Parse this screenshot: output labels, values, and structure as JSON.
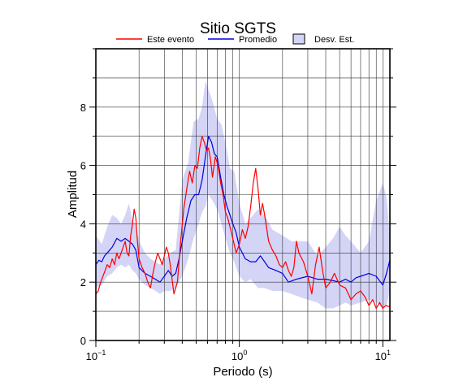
{
  "chart_data": {
    "type": "line",
    "title": "Sitio SGTS",
    "xlabel": "Periodo (s)",
    "ylabel": "Amplitud",
    "xscale": "log",
    "xlim": [
      0.1,
      11.2
    ],
    "ylim": [
      0,
      10
    ],
    "grid": true,
    "legend_position": "top",
    "x_ticks": [
      {
        "value": 0.1,
        "base": "10",
        "exp": "−1"
      },
      {
        "value": 1,
        "base": "10",
        "exp": "0"
      },
      {
        "value": 10,
        "base": "10",
        "exp": "1"
      }
    ],
    "y_ticks": [
      0,
      2,
      4,
      6,
      8
    ],
    "legend": {
      "event": "Este evento",
      "mean": "Promedio",
      "std": "Desv. Est."
    },
    "colors": {
      "event": "#ff0000",
      "mean": "#0000dd",
      "std_fill": "#d4d4f7"
    },
    "series": [
      {
        "role": "event",
        "x": [
          0.1,
          0.104,
          0.108,
          0.112,
          0.116,
          0.12,
          0.125,
          0.13,
          0.135,
          0.14,
          0.145,
          0.15,
          0.155,
          0.16,
          0.165,
          0.17,
          0.175,
          0.18,
          0.185,
          0.19,
          0.195,
          0.2,
          0.21,
          0.22,
          0.23,
          0.24,
          0.25,
          0.26,
          0.27,
          0.28,
          0.29,
          0.3,
          0.31,
          0.32,
          0.33,
          0.35,
          0.37,
          0.39,
          0.41,
          0.43,
          0.45,
          0.47,
          0.49,
          0.51,
          0.53,
          0.55,
          0.57,
          0.59,
          0.61,
          0.63,
          0.65,
          0.68,
          0.71,
          0.74,
          0.77,
          0.8,
          0.83,
          0.86,
          0.9,
          0.95,
          1.0,
          1.05,
          1.1,
          1.15,
          1.2,
          1.25,
          1.3,
          1.35,
          1.4,
          1.45,
          1.5,
          1.6,
          1.7,
          1.8,
          1.9,
          2.0,
          2.1,
          2.2,
          2.3,
          2.4,
          2.5,
          2.6,
          2.8,
          3.0,
          3.2,
          3.4,
          3.6,
          3.8,
          4.0,
          4.3,
          4.6,
          5.0,
          5.5,
          6.0,
          6.5,
          7.0,
          7.5,
          8.0,
          8.5,
          9.0,
          9.5,
          10.0,
          10.5,
          11.2
        ],
        "y": [
          1.6,
          1.7,
          2.0,
          2.2,
          2.4,
          2.6,
          2.5,
          2.8,
          2.6,
          3.0,
          2.8,
          3.0,
          3.2,
          3.4,
          3.0,
          2.9,
          3.6,
          4.0,
          4.5,
          4.2,
          3.4,
          2.8,
          2.5,
          2.3,
          2.0,
          1.8,
          2.3,
          2.7,
          3.0,
          2.8,
          2.6,
          2.9,
          3.2,
          3.0,
          2.6,
          1.6,
          2.0,
          3.4,
          4.5,
          5.2,
          5.8,
          5.4,
          6.0,
          5.9,
          6.6,
          7.0,
          6.8,
          6.5,
          6.6,
          6.2,
          5.6,
          6.3,
          6.0,
          5.4,
          5.0,
          4.4,
          4.2,
          3.9,
          3.5,
          3.0,
          3.3,
          3.8,
          3.5,
          3.9,
          4.6,
          5.4,
          5.9,
          5.2,
          4.3,
          4.7,
          4.3,
          3.4,
          3.1,
          2.9,
          2.6,
          2.5,
          2.7,
          2.4,
          2.2,
          2.5,
          3.4,
          3.0,
          2.7,
          2.2,
          1.6,
          2.6,
          3.2,
          2.4,
          1.8,
          2.0,
          2.3,
          1.9,
          1.8,
          1.4,
          1.6,
          1.7,
          1.5,
          1.2,
          1.4,
          1.1,
          1.3,
          1.1,
          1.2,
          1.15
        ]
      },
      {
        "role": "mean",
        "x": [
          0.1,
          0.105,
          0.11,
          0.115,
          0.12,
          0.13,
          0.14,
          0.15,
          0.16,
          0.17,
          0.18,
          0.19,
          0.2,
          0.22,
          0.24,
          0.26,
          0.28,
          0.3,
          0.32,
          0.34,
          0.36,
          0.38,
          0.4,
          0.43,
          0.46,
          0.49,
          0.52,
          0.55,
          0.58,
          0.61,
          0.64,
          0.67,
          0.7,
          0.74,
          0.78,
          0.82,
          0.86,
          0.9,
          0.95,
          1.0,
          1.1,
          1.2,
          1.3,
          1.4,
          1.5,
          1.6,
          1.8,
          2.0,
          2.2,
          2.5,
          3.0,
          3.5,
          4.0,
          4.5,
          5.0,
          5.5,
          6.0,
          6.5,
          7.0,
          8.0,
          9.0,
          10.0,
          10.6,
          11.2
        ],
        "y": [
          2.6,
          2.75,
          2.7,
          2.9,
          3.0,
          3.2,
          3.5,
          3.4,
          3.5,
          3.4,
          3.3,
          3.1,
          2.5,
          2.3,
          2.2,
          2.1,
          2.0,
          2.2,
          2.4,
          2.2,
          2.3,
          2.8,
          3.4,
          4.2,
          4.8,
          5.0,
          5.0,
          5.5,
          6.3,
          7.0,
          6.8,
          6.4,
          6.3,
          5.6,
          5.0,
          4.6,
          4.3,
          4.0,
          3.7,
          3.2,
          2.8,
          2.7,
          2.7,
          2.9,
          2.7,
          2.5,
          2.4,
          2.3,
          2.0,
          2.1,
          2.2,
          2.1,
          2.1,
          2.05,
          2.0,
          2.1,
          2.0,
          2.15,
          2.2,
          2.3,
          2.2,
          1.9,
          2.3,
          2.75
        ]
      },
      {
        "role": "std",
        "x": [
          0.1,
          0.11,
          0.12,
          0.13,
          0.14,
          0.15,
          0.16,
          0.17,
          0.18,
          0.19,
          0.2,
          0.22,
          0.24,
          0.26,
          0.28,
          0.3,
          0.33,
          0.36,
          0.4,
          0.44,
          0.48,
          0.52,
          0.55,
          0.58,
          0.61,
          0.65,
          0.7,
          0.75,
          0.8,
          0.86,
          0.92,
          1.0,
          1.1,
          1.2,
          1.35,
          1.5,
          1.7,
          2.0,
          2.3,
          2.6,
          3.0,
          3.5,
          4.0,
          4.5,
          5.0,
          5.5,
          6.0,
          7.0,
          8.0,
          9.0,
          10.0,
          10.6,
          11.2
        ],
        "upper": [
          3.6,
          3.3,
          3.9,
          4.3,
          4.2,
          4.0,
          4.3,
          4.7,
          4.1,
          4.0,
          3.4,
          3.0,
          2.8,
          2.7,
          2.6,
          2.8,
          3.0,
          3.1,
          5.5,
          6.1,
          7.5,
          7.6,
          8.0,
          8.9,
          8.6,
          8.2,
          7.6,
          7.4,
          6.8,
          5.9,
          5.8,
          4.7,
          4.0,
          4.2,
          4.5,
          4.3,
          3.8,
          3.6,
          3.4,
          3.4,
          3.4,
          2.9,
          3.2,
          3.5,
          3.9,
          3.6,
          3.4,
          3.0,
          3.4,
          4.8,
          5.4,
          4.9,
          3.6
        ],
        "lower": [
          1.8,
          1.9,
          2.2,
          2.3,
          2.5,
          2.6,
          2.5,
          2.6,
          2.4,
          2.3,
          2.1,
          1.9,
          1.8,
          1.7,
          1.6,
          1.7,
          1.7,
          1.8,
          2.2,
          2.8,
          3.5,
          4.0,
          4.4,
          4.6,
          5.0,
          4.8,
          4.5,
          4.0,
          3.5,
          3.0,
          2.7,
          2.2,
          2.0,
          2.1,
          1.8,
          1.8,
          1.7,
          1.7,
          1.6,
          1.5,
          1.4,
          1.3,
          1.1,
          1.1,
          1.2,
          1.3,
          1.2,
          1.3,
          1.4,
          1.3,
          1.1,
          1.2,
          1.7
        ]
      }
    ]
  }
}
